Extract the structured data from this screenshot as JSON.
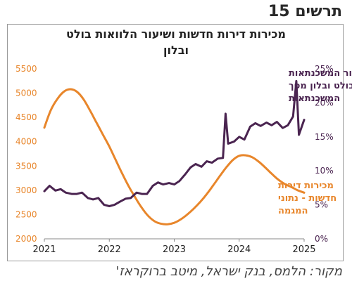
{
  "figure_label": "תרשים 15",
  "source": "מקור: הלמס, בנק ישראל, מיטב ברוקראז'",
  "chart_data": {
    "type": "line",
    "title_lines": [
      "מכירות דירות חדשות ושיעור הלוואות בולט",
      "ובלון"
    ],
    "x_ticks": [
      "2021",
      "2022",
      "2023",
      "2024",
      "2025"
    ],
    "xlim": [
      2021,
      2025
    ],
    "y_left": {
      "ticks": [
        "5500",
        "5000",
        "4500",
        "4000",
        "3500",
        "3000",
        "2500",
        "2000"
      ],
      "ylim": [
        2000,
        5500
      ],
      "color": "#e8862b"
    },
    "y_right": {
      "ticks": [
        "25%",
        "20%",
        "15%",
        "10%",
        "5%",
        "0%"
      ],
      "ylim": [
        0,
        25
      ],
      "color": "#4a2450"
    },
    "grid": false,
    "legend": "inline annotations",
    "series": [
      {
        "name": "מכירות דירות חדשות - נתוני המגמה",
        "label_lines": [
          "מכירות דירות",
          "חדשות - נתוני",
          "המגמה"
        ],
        "axis": "left",
        "color": "#e8862b",
        "x": [
          2021.0,
          2021.1,
          2021.2,
          2021.3,
          2021.4,
          2021.5,
          2021.6,
          2021.7,
          2021.8,
          2021.9,
          2022.0,
          2022.1,
          2022.2,
          2022.3,
          2022.4,
          2022.5,
          2022.6,
          2022.7,
          2022.8,
          2022.9,
          2023.0,
          2023.1,
          2023.2,
          2023.3,
          2023.4,
          2023.5,
          2023.6,
          2023.7,
          2023.8,
          2023.9,
          2024.0,
          2024.1,
          2024.2,
          2024.3,
          2024.4,
          2024.5,
          2024.6,
          2024.7,
          2024.8,
          2024.9,
          2025.0
        ],
        "values": [
          4290,
          4650,
          4880,
          5030,
          5080,
          5030,
          4880,
          4650,
          4400,
          4150,
          3900,
          3620,
          3340,
          3080,
          2850,
          2640,
          2470,
          2360,
          2310,
          2300,
          2330,
          2400,
          2500,
          2620,
          2760,
          2920,
          3100,
          3290,
          3470,
          3620,
          3710,
          3720,
          3680,
          3590,
          3470,
          3340,
          3220,
          3130,
          3070,
          3000,
          2950
        ]
      },
      {
        "name": "שיעור המשכנתאות בולט ובלון מסך המשכנתאות",
        "label_lines": [
          "שיעור המשכנתאות",
          "בולט ובלון מסך",
          "המשכנתאות"
        ],
        "axis": "right",
        "color": "#4a2450",
        "x": [
          2021.0,
          2021.08,
          2021.17,
          2021.25,
          2021.33,
          2021.42,
          2021.5,
          2021.58,
          2021.67,
          2021.75,
          2021.83,
          2021.92,
          2022.0,
          2022.08,
          2022.17,
          2022.25,
          2022.33,
          2022.42,
          2022.5,
          2022.58,
          2022.67,
          2022.75,
          2022.83,
          2022.92,
          2023.0,
          2023.08,
          2023.17,
          2023.25,
          2023.33,
          2023.42,
          2023.5,
          2023.58,
          2023.67,
          2023.75,
          2023.79,
          2023.83,
          2023.92,
          2024.0,
          2024.08,
          2024.17,
          2024.25,
          2024.33,
          2024.42,
          2024.5,
          2024.58,
          2024.67,
          2024.75,
          2024.83,
          2024.88,
          2024.92,
          2025.0
        ],
        "values": [
          7.0,
          7.8,
          7.1,
          7.3,
          6.8,
          6.6,
          6.6,
          6.8,
          6.0,
          5.8,
          6.0,
          5.0,
          4.8,
          5.0,
          5.5,
          5.9,
          6.0,
          6.8,
          6.6,
          6.6,
          7.8,
          8.3,
          8.0,
          8.2,
          8.0,
          8.5,
          9.5,
          10.5,
          11.0,
          10.6,
          11.4,
          11.2,
          11.8,
          11.9,
          18.4,
          14.0,
          14.3,
          15.0,
          14.6,
          16.5,
          17.0,
          16.6,
          17.1,
          16.7,
          17.2,
          16.3,
          16.7,
          18.0,
          23.2,
          15.3,
          17.5
        ]
      }
    ]
  }
}
